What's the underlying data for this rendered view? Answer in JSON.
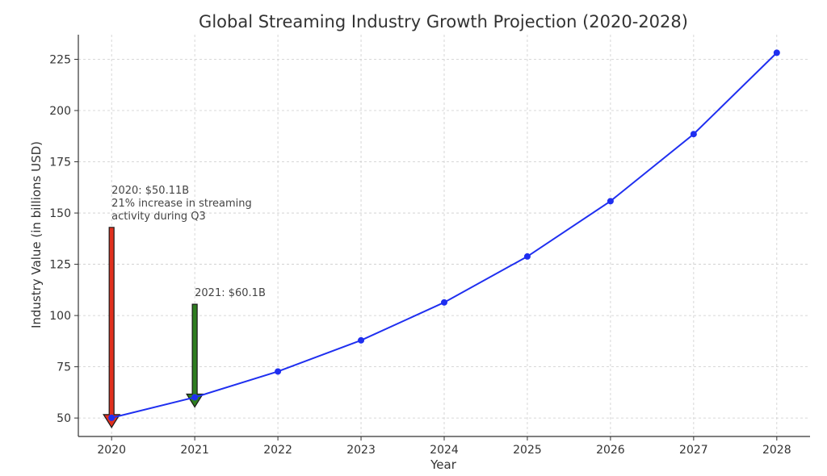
{
  "chart_data": {
    "type": "line",
    "title": "Global Streaming Industry Growth Projection (2020-2028)",
    "xlabel": "Year",
    "ylabel": "Industry Value (in billions USD)",
    "x": [
      2020,
      2021,
      2022,
      2023,
      2024,
      2025,
      2026,
      2027,
      2028
    ],
    "x_tick_labels": [
      "2020",
      "2021",
      "2022",
      "2023",
      "2024",
      "2025",
      "2026",
      "2027",
      "2028"
    ],
    "series": [
      {
        "values": [
          50.11,
          60.1,
          72.7,
          87.9,
          106.4,
          128.8,
          155.8,
          188.5,
          228.2
        ],
        "color": "#1f2ff0"
      }
    ],
    "xlim": [
      2019.6,
      2028.4
    ],
    "ylim": [
      41,
      237
    ],
    "y_ticks": [
      50,
      75,
      100,
      125,
      150,
      175,
      200,
      225
    ],
    "y_tick_labels": [
      "50",
      "75",
      "100",
      "125",
      "150",
      "175",
      "200",
      "225"
    ],
    "grid": true,
    "annotations": [
      {
        "lines": [
          "2020: $50.11B",
          "21% increase in streaming",
          "activity during Q3"
        ],
        "x": 2020,
        "y": 50.11,
        "arrow_from_y": 143,
        "arrow_color": "#e0301e"
      },
      {
        "lines": [
          "2021: $60.1B"
        ],
        "x": 2021,
        "y": 60.1,
        "arrow_from_y": 105.5,
        "arrow_color": "#2e7d1f"
      }
    ]
  }
}
